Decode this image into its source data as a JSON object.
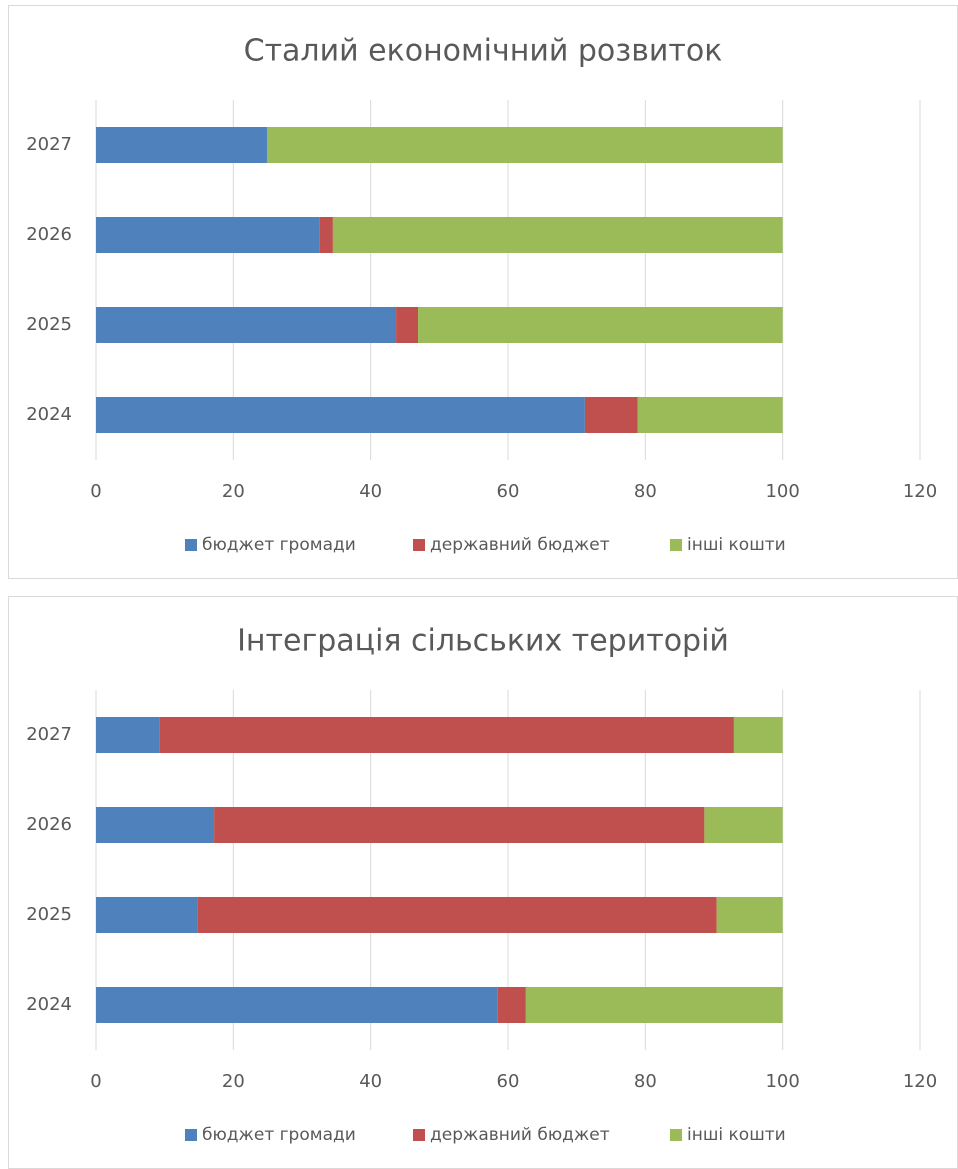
{
  "chart_data": [
    {
      "type": "bar",
      "orientation": "horizontal",
      "stacked": true,
      "title": "Сталий економічний розвиток",
      "categories": [
        "2024",
        "2025",
        "2026",
        "2027"
      ],
      "series": [
        {
          "name": "бюджет громади",
          "color": "#4f81bd",
          "values": [
            71.2,
            43.7,
            32.6,
            24.9
          ]
        },
        {
          "name": "державний бюджет",
          "color": "#c0504d",
          "values": [
            7.7,
            3.2,
            1.9,
            0
          ]
        },
        {
          "name": "інші кошти",
          "color": "#9bbb59",
          "values": [
            21.1,
            53.1,
            65.5,
            75.1
          ]
        }
      ],
      "xlim": [
        0,
        120
      ],
      "xticks": [
        0,
        20,
        40,
        60,
        80,
        100,
        120
      ],
      "grid": true,
      "legend": "bottom"
    },
    {
      "type": "bar",
      "orientation": "horizontal",
      "stacked": true,
      "title": "Інтеграція сільських територій",
      "categories": [
        "2024",
        "2025",
        "2026",
        "2027"
      ],
      "series": [
        {
          "name": "бюджет громади",
          "color": "#4f81bd",
          "values": [
            58.5,
            14.8,
            17.2,
            9.3
          ]
        },
        {
          "name": "державний бюджет",
          "color": "#c0504d",
          "values": [
            4.1,
            75.6,
            71.4,
            83.6
          ]
        },
        {
          "name": "інші кошти",
          "color": "#9bbb59",
          "values": [
            37.4,
            9.6,
            11.4,
            7.1
          ]
        }
      ],
      "xlim": [
        0,
        120
      ],
      "xticks": [
        0,
        20,
        40,
        60,
        80,
        100,
        120
      ],
      "grid": true,
      "legend": "bottom"
    }
  ]
}
